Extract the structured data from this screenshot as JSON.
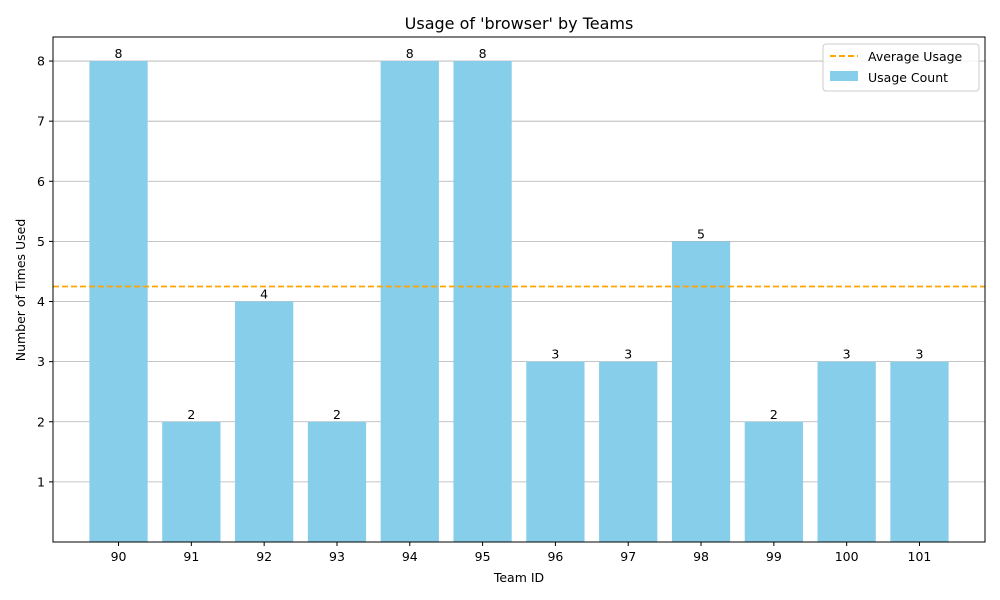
{
  "chart_data": {
    "type": "bar",
    "title": "Usage of 'browser' by Teams",
    "xlabel": "Team ID",
    "ylabel": "Number of Times Used",
    "categories": [
      "90",
      "91",
      "92",
      "93",
      "94",
      "95",
      "96",
      "97",
      "98",
      "99",
      "100",
      "101"
    ],
    "series": [
      {
        "name": "Usage Count",
        "values": [
          8,
          2,
          4,
          2,
          8,
          8,
          3,
          3,
          5,
          2,
          3,
          3
        ],
        "color": "#87ceeb"
      }
    ],
    "average_line": {
      "name": "Average Usage",
      "value": 4.25,
      "color": "#ffa500",
      "style": "dashed"
    },
    "ylim": [
      0,
      8.4
    ],
    "yticks": [
      1,
      2,
      3,
      4,
      5,
      6,
      7,
      8
    ],
    "grid": "y",
    "legend": "top-right"
  }
}
